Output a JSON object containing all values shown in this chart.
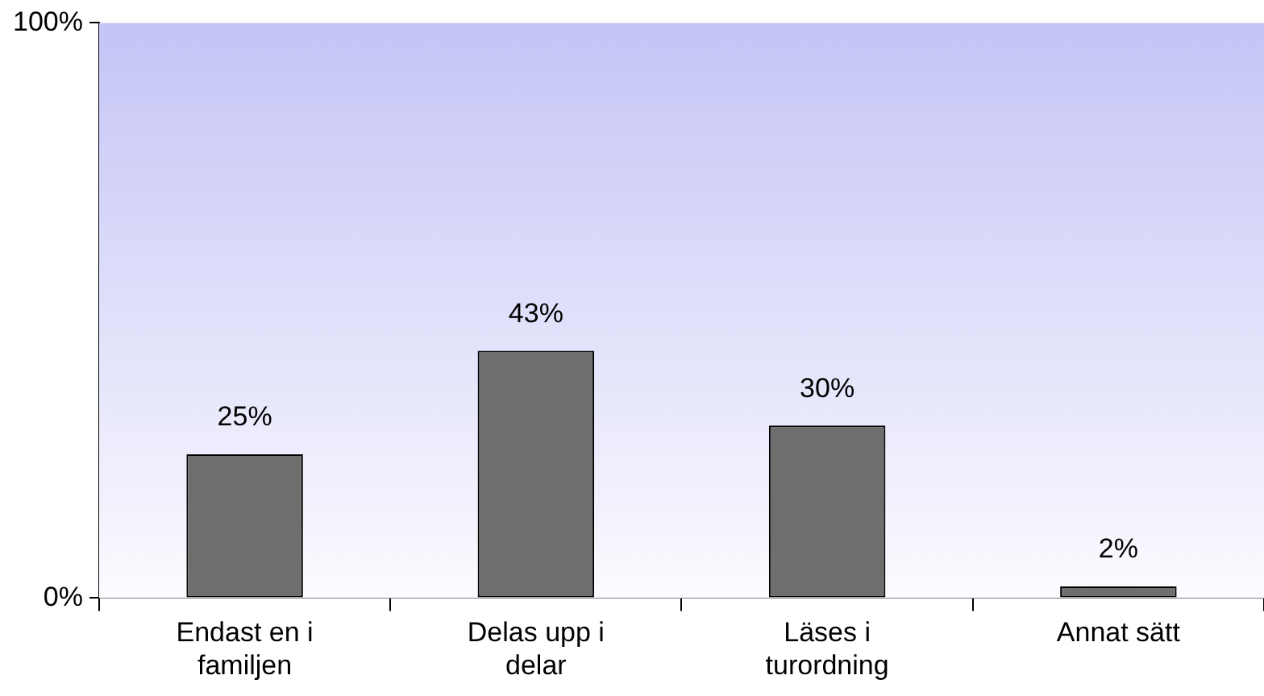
{
  "chart_data": {
    "type": "bar",
    "categories": [
      "Endast en i familjen",
      "Delas upp i delar",
      "Läses i turordning",
      "Annat sätt"
    ],
    "values": [
      25,
      43,
      30,
      2
    ],
    "value_labels": [
      "25%",
      "43%",
      "30%",
      "2%"
    ],
    "color": "#6e6e6e",
    "ylim": [
      0,
      100
    ],
    "yticks": [
      {
        "value": 0,
        "label": "0%"
      },
      {
        "value": 100,
        "label": "100%"
      }
    ],
    "grid": false,
    "legend": false
  }
}
